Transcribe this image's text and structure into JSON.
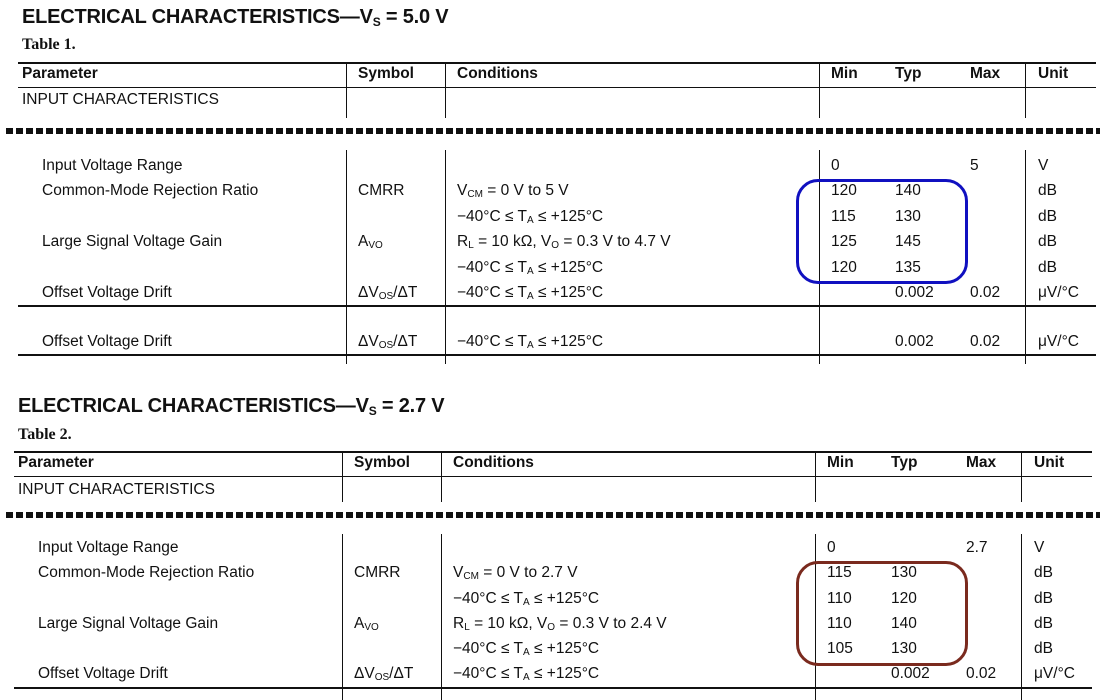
{
  "headers": {
    "parameter": "Parameter",
    "symbol": "Symbol",
    "conditions": "Conditions",
    "min": "Min",
    "typ": "Typ",
    "max": "Max",
    "unit": "Unit"
  },
  "tables": [
    {
      "title_main": "ELECTRICAL CHARACTERISTICS—V",
      "title_sub": "S",
      "title_tail": " = 5.0 V",
      "label": "Table 1.",
      "section": "INPUT CHARACTERISTICS",
      "highlight_color": "#1010c0",
      "rows": [
        {
          "param": "Input Voltage Range",
          "symbol": [],
          "cond": [],
          "min": "0",
          "typ": "",
          "max": "5",
          "unit": "V"
        },
        {
          "param": "Common-Mode Rejection Ratio",
          "symbol": [
            "CMRR"
          ],
          "cond": [
            "V",
            {
              "sub": "CM"
            },
            " = 0 V to 5 V"
          ],
          "min": "120",
          "typ": "140",
          "max": "",
          "unit": "dB"
        },
        {
          "param": "",
          "symbol": [],
          "cond": [
            "−40°C ≤ T",
            {
              "sub": "A"
            },
            " ≤ +125°C"
          ],
          "min": "115",
          "typ": "130",
          "max": "",
          "unit": "dB"
        },
        {
          "param": "Large Signal Voltage Gain",
          "symbol": [
            "A",
            {
              "sub": "VO"
            }
          ],
          "cond": [
            "R",
            {
              "sub": "L"
            },
            " = 10 kΩ, V",
            {
              "sub": "O"
            },
            " = 0.3 V to 4.7 V"
          ],
          "min": "125",
          "typ": "145",
          "max": "",
          "unit": "dB"
        },
        {
          "param": "",
          "symbol": [],
          "cond": [
            "−40°C ≤ T",
            {
              "sub": "A"
            },
            " ≤ +125°C"
          ],
          "min": "120",
          "typ": "135",
          "max": "",
          "unit": "dB"
        },
        {
          "param": "Offset Voltage Drift",
          "symbol": [
            "ΔV",
            {
              "sub": "OS"
            },
            "/ΔT"
          ],
          "cond": [
            "−40°C ≤ T",
            {
              "sub": "A"
            },
            " ≤ +125°C"
          ],
          "min": "",
          "typ": "0.002",
          "max": "0.02",
          "unit": "μV/°C"
        }
      ],
      "extra_row": {
        "param": "Offset Voltage Drift",
        "symbol": [
          "ΔV",
          {
            "sub": "OS"
          },
          "/ΔT"
        ],
        "cond": [
          "−40°C ≤ T",
          {
            "sub": "A"
          },
          " ≤ +125°C"
        ],
        "min": "",
        "typ": "0.002",
        "max": "0.02",
        "unit": "μV/°C"
      }
    },
    {
      "title_main": "ELECTRICAL CHARACTERISTICS—V",
      "title_sub": "S",
      "title_tail": " = 2.7 V",
      "label": "Table 2.",
      "section": "INPUT CHARACTERISTICS",
      "highlight_color": "#7a2a1e",
      "rows": [
        {
          "param": "Input Voltage Range",
          "symbol": [],
          "cond": [],
          "min": "0",
          "typ": "",
          "max": "2.7",
          "unit": "V"
        },
        {
          "param": "Common-Mode Rejection Ratio",
          "symbol": [
            "CMRR"
          ],
          "cond": [
            "V",
            {
              "sub": "CM"
            },
            " = 0 V to 2.7 V"
          ],
          "min": "115",
          "typ": "130",
          "max": "",
          "unit": "dB"
        },
        {
          "param": "",
          "symbol": [],
          "cond": [
            "−40°C ≤ T",
            {
              "sub": "A"
            },
            " ≤ +125°C"
          ],
          "min": "110",
          "typ": "120",
          "max": "",
          "unit": "dB"
        },
        {
          "param": "Large Signal Voltage Gain",
          "symbol": [
            "A",
            {
              "sub": "VO"
            }
          ],
          "cond": [
            "R",
            {
              "sub": "L"
            },
            " = 10 kΩ, V",
            {
              "sub": "O"
            },
            " = 0.3 V to 2.4 V"
          ],
          "min": "110",
          "typ": "140",
          "max": "",
          "unit": "dB"
        },
        {
          "param": "",
          "symbol": [],
          "cond": [
            "−40°C ≤ T",
            {
              "sub": "A"
            },
            " ≤ +125°C"
          ],
          "min": "105",
          "typ": "130",
          "max": "",
          "unit": "dB"
        },
        {
          "param": "Offset Voltage Drift",
          "symbol": [
            "ΔV",
            {
              "sub": "OS"
            },
            "/ΔT"
          ],
          "cond": [
            "−40°C ≤ T",
            {
              "sub": "A"
            },
            " ≤ +125°C"
          ],
          "min": "",
          "typ": "0.002",
          "max": "0.02",
          "unit": "μV/°C"
        }
      ]
    }
  ]
}
